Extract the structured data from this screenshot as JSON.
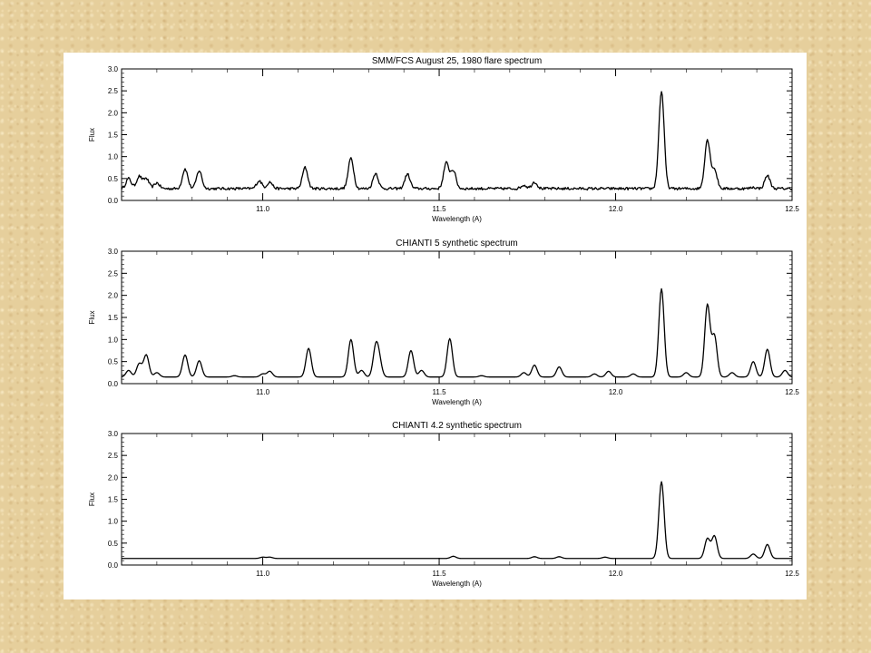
{
  "chart_data": [
    {
      "type": "line",
      "title": "SMM/FCS August 25, 1980 flare spectrum",
      "xlabel": "Wavelength (A)",
      "ylabel": "Flux",
      "xlim": [
        10.6,
        12.5
      ],
      "ylim": [
        0.0,
        3.0
      ],
      "xticks": [
        "11.0",
        "11.5",
        "12.0",
        "12.5"
      ],
      "yticks": [
        "0.0",
        "0.5",
        "1.0",
        "1.5",
        "2.0",
        "2.5",
        "3.0"
      ],
      "baseline": 0.27,
      "peaks": [
        [
          10.62,
          0.5
        ],
        [
          10.65,
          0.55
        ],
        [
          10.67,
          0.5
        ],
        [
          10.7,
          0.4
        ],
        [
          10.78,
          0.72
        ],
        [
          10.82,
          0.68
        ],
        [
          10.99,
          0.45
        ],
        [
          11.02,
          0.42
        ],
        [
          11.12,
          0.75
        ],
        [
          11.25,
          0.97
        ],
        [
          11.32,
          0.62
        ],
        [
          11.41,
          0.6
        ],
        [
          11.52,
          0.85
        ],
        [
          11.54,
          0.68
        ],
        [
          11.74,
          0.35
        ],
        [
          11.77,
          0.42
        ],
        [
          12.13,
          2.5
        ],
        [
          12.26,
          1.38
        ],
        [
          12.28,
          0.7
        ],
        [
          12.39,
          0.3
        ],
        [
          12.43,
          0.57
        ]
      ]
    },
    {
      "type": "line",
      "title": "CHIANTI 5 synthetic spectrum",
      "xlabel": "Wavelength (A)",
      "ylabel": "Flux",
      "xlim": [
        10.6,
        12.5
      ],
      "ylim": [
        0.0,
        3.0
      ],
      "xticks": [
        "11.0",
        "11.5",
        "12.0",
        "12.5"
      ],
      "yticks": [
        "0.0",
        "0.5",
        "1.0",
        "1.5",
        "2.0",
        "2.5",
        "3.0"
      ],
      "baseline": 0.15,
      "peaks": [
        [
          10.62,
          0.3
        ],
        [
          10.65,
          0.45
        ],
        [
          10.67,
          0.65
        ],
        [
          10.7,
          0.25
        ],
        [
          10.78,
          0.65
        ],
        [
          10.82,
          0.52
        ],
        [
          10.92,
          0.18
        ],
        [
          11.0,
          0.22
        ],
        [
          11.02,
          0.28
        ],
        [
          11.13,
          0.8
        ],
        [
          11.25,
          1.0
        ],
        [
          11.28,
          0.3
        ],
        [
          11.32,
          0.78
        ],
        [
          11.33,
          0.5
        ],
        [
          11.42,
          0.75
        ],
        [
          11.45,
          0.3
        ],
        [
          11.53,
          1.02
        ],
        [
          11.62,
          0.18
        ],
        [
          11.74,
          0.25
        ],
        [
          11.77,
          0.42
        ],
        [
          11.84,
          0.38
        ],
        [
          11.94,
          0.22
        ],
        [
          11.98,
          0.28
        ],
        [
          12.05,
          0.22
        ],
        [
          12.13,
          2.15
        ],
        [
          12.2,
          0.25
        ],
        [
          12.26,
          1.78
        ],
        [
          12.28,
          1.08
        ],
        [
          12.33,
          0.25
        ],
        [
          12.39,
          0.5
        ],
        [
          12.43,
          0.78
        ],
        [
          12.48,
          0.3
        ]
      ]
    },
    {
      "type": "line",
      "title": "CHIANTI 4.2 synthetic spectrum",
      "xlabel": "Wavelength (A)",
      "ylabel": "Flux",
      "xlim": [
        10.6,
        12.5
      ],
      "ylim": [
        0.0,
        3.0
      ],
      "xticks": [
        "11.0",
        "11.5",
        "12.0",
        "12.5"
      ],
      "yticks": [
        "0.0",
        "0.5",
        "1.0",
        "1.5",
        "2.0",
        "2.5",
        "3.0"
      ],
      "baseline": 0.15,
      "peaks": [
        [
          11.0,
          0.18
        ],
        [
          11.02,
          0.18
        ],
        [
          11.54,
          0.2
        ],
        [
          11.77,
          0.19
        ],
        [
          11.84,
          0.19
        ],
        [
          11.97,
          0.18
        ],
        [
          12.13,
          1.9
        ],
        [
          12.26,
          0.6
        ],
        [
          12.28,
          0.66
        ],
        [
          12.39,
          0.25
        ],
        [
          12.43,
          0.47
        ]
      ]
    }
  ]
}
